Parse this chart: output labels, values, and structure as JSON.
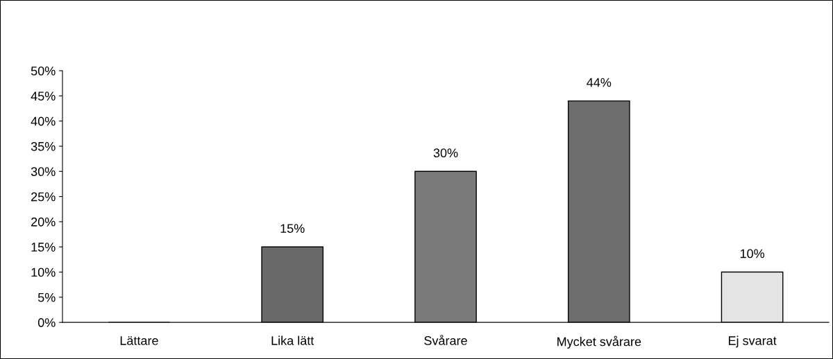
{
  "chart_data": {
    "type": "bar",
    "categories": [
      "Lättare",
      "Lika lätt",
      "Svårare",
      "Mycket svårare",
      "Ej svarat"
    ],
    "values": [
      0,
      15,
      30,
      44,
      10
    ],
    "value_labels": [
      null,
      "15%",
      "30%",
      "44%",
      "10%"
    ],
    "colors": [
      "#000000",
      "#6a6a6a",
      "#7a7a7a",
      "#6e6e6e",
      "#e4e4e4"
    ],
    "ylim": [
      0,
      50
    ],
    "yticks": [
      {
        "value": 0,
        "label": "0%"
      },
      {
        "value": 5,
        "label": "5%"
      },
      {
        "value": 10,
        "label": "10%"
      },
      {
        "value": 15,
        "label": "15%"
      },
      {
        "value": 20,
        "label": "20%"
      },
      {
        "value": 25,
        "label": "25%"
      },
      {
        "value": 30,
        "label": "30%"
      },
      {
        "value": 35,
        "label": "35%"
      },
      {
        "value": 40,
        "label": "40%"
      },
      {
        "value": 45,
        "label": "45%"
      },
      {
        "value": 50,
        "label": "50%"
      }
    ],
    "grid": false,
    "legend": false
  }
}
